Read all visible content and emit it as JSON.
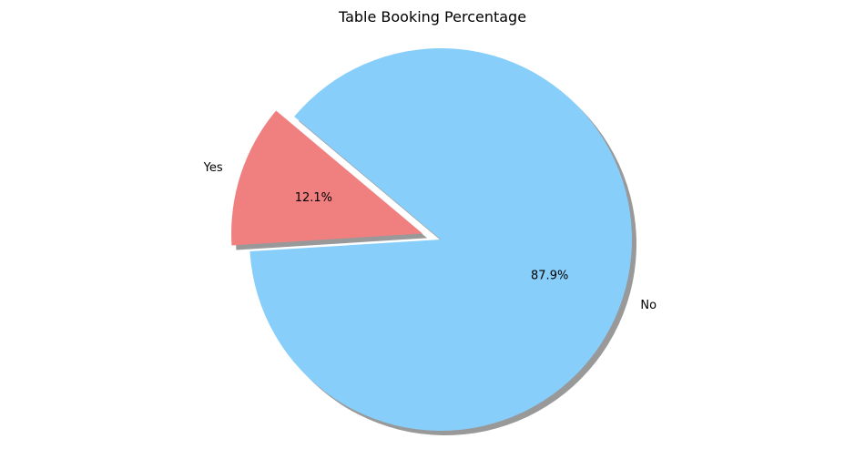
{
  "chart_data": {
    "type": "pie",
    "title": "Table Booking Percentage",
    "slices": [
      {
        "label": "Yes",
        "value": 12.1,
        "pct_label": "12.1%",
        "color": "#f08080",
        "exploded": true
      },
      {
        "label": "No",
        "value": 87.9,
        "pct_label": "87.9%",
        "color": "#87cefa",
        "exploded": false
      }
    ],
    "shadow": true,
    "shadow_color": "#808080",
    "start_angle_deg": 140,
    "legend": "none"
  }
}
